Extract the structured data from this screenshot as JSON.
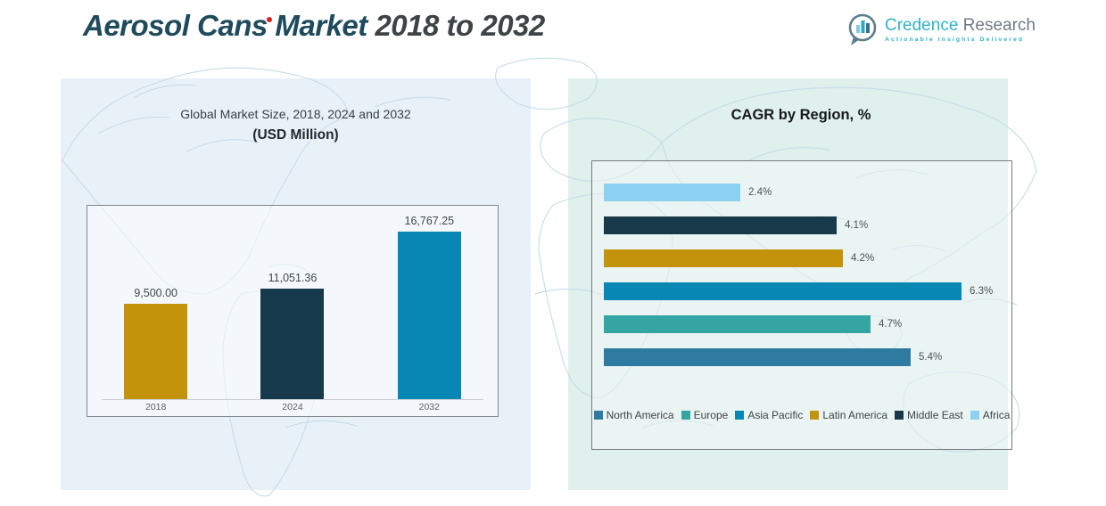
{
  "header": {
    "title_main": "Aerosol Cans Market ",
    "title_years": "2018 to 2032"
  },
  "logo": {
    "brand_primary": "Credence",
    "brand_secondary": " Research",
    "tagline": "Actionable Insights Delivered"
  },
  "left_chart": {
    "title_line1": "Global Market Size, 2018, 2024 and 2032",
    "title_line2": "(USD Million)"
  },
  "right_chart": {
    "title": "CAGR by Region, %"
  },
  "colors": {
    "gold": "#C2930B",
    "dark_navy": "#17394A",
    "blue": "#0886B4",
    "teal": "#34A5A2",
    "steel_blue": "#2F7AA1",
    "light_blue": "#8BD2F2",
    "title_teal": "#1F4A5C",
    "accent_red": "#D92323",
    "brand_teal": "#2FB3C7"
  },
  "chart_data": [
    {
      "type": "bar",
      "title": "Global Market Size, 2018, 2024 and 2032 (USD Million)",
      "categories": [
        "2018",
        "2024",
        "2032"
      ],
      "values": [
        9500.0,
        11051.36,
        16767.25
      ],
      "value_labels": [
        "9,500.00",
        "11,051.36",
        "16,767.25"
      ],
      "bar_colors": [
        "#C2930B",
        "#16394B",
        "#0886B4"
      ],
      "ylim": [
        0,
        17000
      ],
      "grid": false,
      "legend_position": "none"
    },
    {
      "type": "bar-horizontal",
      "title": "CAGR by Region, %",
      "categories": [
        "Africa",
        "Middle East",
        "Latin America",
        "Asia Pacific",
        "Europe",
        "North America"
      ],
      "values": [
        2.4,
        4.1,
        4.2,
        6.3,
        4.7,
        5.4
      ],
      "value_labels": [
        "2.4%",
        "4.1%",
        "4.2%",
        "6.3%",
        "4.7%",
        "5.4%"
      ],
      "bar_colors": [
        "#8BD2F2",
        "#17394A",
        "#C2930B",
        "#0886B4",
        "#34A5A2",
        "#2F7AA1"
      ],
      "xlim": [
        0,
        7.4
      ],
      "grid": false,
      "legend_position": "bottom",
      "legend": [
        "North America",
        "Europe",
        "Asia Pacific",
        "Latin America",
        "Middle East",
        "Africa"
      ],
      "legend_colors": [
        "#2F7AA1",
        "#34A5A2",
        "#0886B4",
        "#C2930B",
        "#17394A",
        "#8BD2F2"
      ]
    }
  ]
}
